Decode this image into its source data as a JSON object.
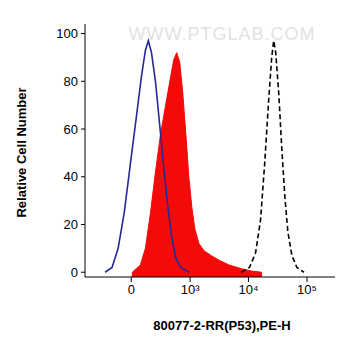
{
  "chart_data": {
    "type": "line",
    "x_label": "80077-2-RR(P53),PE-H",
    "y_label": "Relative Cell Number",
    "annotations": [
      "WWW.PTGLAB.COM"
    ],
    "log": "x",
    "grid": false,
    "xlim": [
      -600,
      300000
    ],
    "xticks": [
      0,
      {
        "value": 1000,
        "label": "10³"
      },
      {
        "value": 10000,
        "label": "10⁴"
      },
      {
        "value": 100000,
        "label": "10⁵"
      }
    ],
    "ylim": [
      -2,
      104
    ],
    "yticks": [
      0,
      20,
      40,
      60,
      80,
      100
    ],
    "series": [
      {
        "type": "line",
        "color": "#27279a",
        "line_style": "solid",
        "x": [
          -244,
          -166,
          -108,
          -56,
          -8,
          40,
          82,
          117,
          145,
          176,
          220,
          272,
          327,
          395,
          468,
          556,
          685,
          950
        ],
        "values": [
          0,
          2,
          10,
          25,
          45,
          65,
          82,
          93,
          97,
          92,
          80,
          62,
          45,
          28,
          15,
          6,
          2,
          0
        ]
      },
      {
        "type": "area",
        "color": "#f50a0a",
        "line_style": "solid",
        "x": [
          8,
          73,
          117,
          166,
          220,
          285,
          360,
          449,
          512,
          580,
          657,
          744,
          842,
          950,
          1074,
          1212,
          1424,
          1738,
          2298,
          3160,
          4700,
          7580,
          11260,
          16740
        ],
        "values": [
          0,
          3,
          10,
          25,
          42,
          58,
          70,
          82,
          89,
          92,
          88,
          75,
          58,
          40,
          27,
          18,
          12,
          9,
          7,
          5,
          3,
          1.5,
          0.5,
          0
        ]
      },
      {
        "type": "line",
        "color": "#000000",
        "line_style": "dashed",
        "x": [
          7580,
          10400,
          13200,
          16100,
          18860,
          22120,
          24940,
          26980,
          29200,
          32900,
          37040,
          41720,
          47020,
          55080,
          67200,
          88740
        ],
        "values": [
          0,
          2,
          8,
          22,
          45,
          72,
          90,
          97,
          92,
          75,
          52,
          32,
          17,
          7,
          2,
          0
        ]
      }
    ]
  }
}
